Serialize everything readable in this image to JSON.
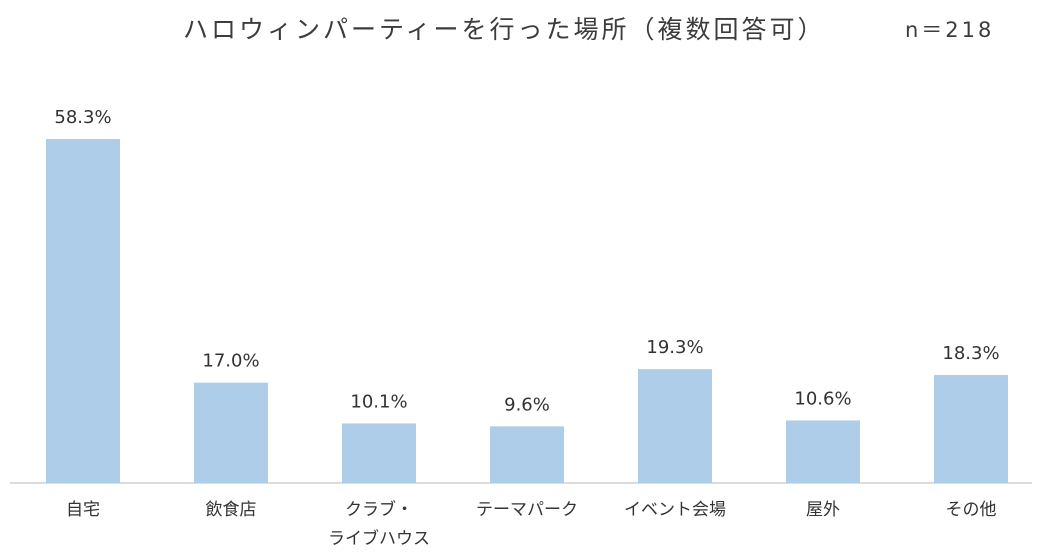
{
  "chart_data": {
    "type": "bar",
    "title": "ハロウィンパーティーを行った場所（複数回答可）",
    "sample_size": "n＝218",
    "categories": [
      "自宅",
      "飲食店",
      "クラブ・\nライブハウス",
      "テーマパーク",
      "イベント会場",
      "屋外",
      "その他"
    ],
    "values": [
      58.3,
      17.0,
      10.1,
      9.6,
      19.3,
      10.6,
      18.3
    ],
    "data_labels": [
      "58.3%",
      "17.0%",
      "10.1%",
      "9.6%",
      "19.3%",
      "10.6%",
      "18.3%"
    ],
    "bar_color": "#adcde9",
    "axis_color": "#d0d0d0",
    "ylim": [
      0,
      60
    ],
    "grid": false,
    "legend": "none"
  }
}
